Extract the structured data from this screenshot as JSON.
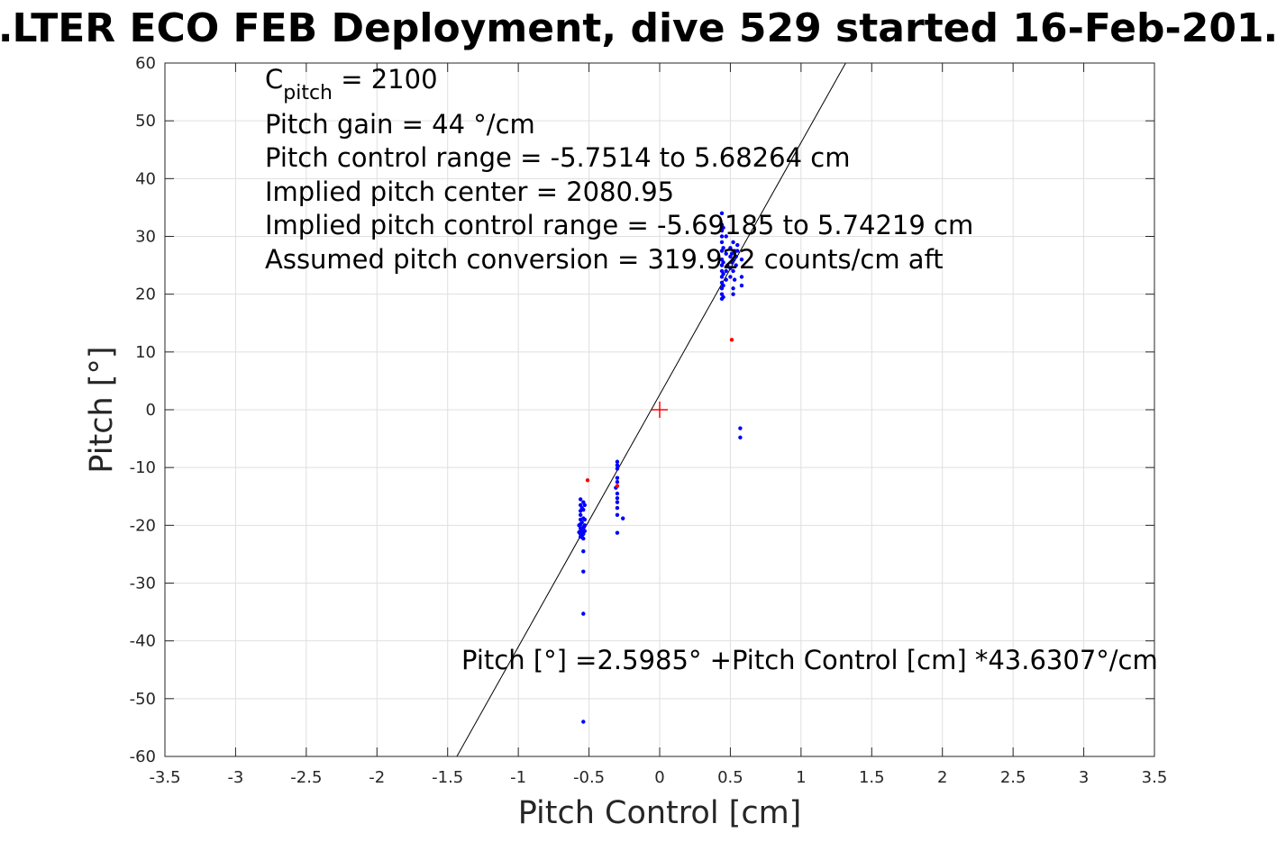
{
  "chart_data": {
    "type": "scatter",
    "title": "…LTER ECO FEB Deployment, dive 529 started 16-Feb-201…",
    "xlabel": "Pitch Control [cm]",
    "ylabel": "Pitch [°]",
    "xlim": [
      -3.5,
      3.5
    ],
    "ylim": [
      -60,
      60
    ],
    "x_ticks": [
      "-3.5",
      "-3",
      "-2.5",
      "-2",
      "-1.5",
      "-1",
      "-0.5",
      "0",
      "0.5",
      "1",
      "1.5",
      "2",
      "2.5",
      "3",
      "3.5"
    ],
    "y_ticks": [
      "60",
      "50",
      "40",
      "30",
      "20",
      "10",
      "0",
      "-10",
      "-20",
      "-30",
      "-40",
      "-50",
      "-60"
    ],
    "grid": true,
    "annotations": {
      "cpitch_main": "C",
      "cpitch_sub": "pitch",
      "cpitch_value": " = 2100",
      "line2": "Pitch gain = 44 °/cm",
      "line3": "Pitch control range = -5.7514 to 5.68264 cm",
      "line4": "Implied pitch center = 2080.95",
      "line5": "Implied pitch control range = -5.69185 to 5.74219 cm",
      "line6": "Assumed pitch conversion = 319.922 counts/cm aft",
      "fit_equation": "Pitch [°] =2.5985° +Pitch Control [cm] *43.6307°/cm"
    },
    "fit_line": {
      "intercept": 2.5985,
      "slope": 43.6307,
      "color": "#000000"
    },
    "center_marker": {
      "x": 0,
      "y": 0,
      "color": "#ff0000",
      "symbol": "+"
    },
    "series": [
      {
        "color": "#0000ff",
        "points": [
          [
            -0.56,
            -15.5
          ],
          [
            -0.56,
            -16.5
          ],
          [
            -0.56,
            -17.5
          ],
          [
            -0.56,
            -18.2
          ],
          [
            -0.56,
            -19.0
          ],
          [
            -0.56,
            -19.8
          ],
          [
            -0.56,
            -20.5
          ],
          [
            -0.56,
            -21.0
          ],
          [
            -0.56,
            -21.5
          ],
          [
            -0.56,
            -22.0
          ],
          [
            -0.57,
            -20.0
          ],
          [
            -0.57,
            -21.2
          ],
          [
            -0.55,
            -17.0
          ],
          [
            -0.55,
            -19.5
          ],
          [
            -0.55,
            -20.8
          ],
          [
            -0.55,
            -21.8
          ],
          [
            -0.54,
            -16.0
          ],
          [
            -0.54,
            -17.3
          ],
          [
            -0.54,
            -18.8
          ],
          [
            -0.54,
            -20.3
          ],
          [
            -0.54,
            -21.5
          ],
          [
            -0.54,
            -22.3
          ],
          [
            -0.53,
            -16.5
          ],
          [
            -0.53,
            -19.0
          ],
          [
            -0.53,
            -20.0
          ],
          [
            -0.53,
            -21.0
          ],
          [
            -0.54,
            -24.5
          ],
          [
            -0.54,
            -28.0
          ],
          [
            -0.54,
            -35.3
          ],
          [
            -0.54,
            -54.0
          ],
          [
            -0.3,
            -9.0
          ],
          [
            -0.3,
            -9.6
          ],
          [
            -0.3,
            -10.2
          ],
          [
            -0.3,
            -11.8
          ],
          [
            -0.3,
            -12.5
          ],
          [
            -0.3,
            -14.5
          ],
          [
            -0.3,
            -15.3
          ],
          [
            -0.3,
            -16.0
          ],
          [
            -0.3,
            -17.0
          ],
          [
            -0.3,
            -18.2
          ],
          [
            -0.31,
            -13.5
          ],
          [
            -0.3,
            -21.3
          ],
          [
            -0.26,
            -18.8
          ],
          [
            0.44,
            34.0
          ],
          [
            0.44,
            32.0
          ],
          [
            0.44,
            31.0
          ],
          [
            0.44,
            30.0
          ],
          [
            0.44,
            29.0
          ],
          [
            0.44,
            27.5
          ],
          [
            0.44,
            26.0
          ],
          [
            0.44,
            25.0
          ],
          [
            0.44,
            24.0
          ],
          [
            0.44,
            23.0
          ],
          [
            0.44,
            22.0
          ],
          [
            0.44,
            21.0
          ],
          [
            0.44,
            20.0
          ],
          [
            0.44,
            19.2
          ],
          [
            0.45,
            31.5
          ],
          [
            0.45,
            28.0
          ],
          [
            0.45,
            25.5
          ],
          [
            0.45,
            23.5
          ],
          [
            0.45,
            21.5
          ],
          [
            0.45,
            19.5
          ],
          [
            0.47,
            30.0
          ],
          [
            0.47,
            27.0
          ],
          [
            0.47,
            24.0
          ],
          [
            0.47,
            22.5
          ],
          [
            0.48,
            25.0
          ],
          [
            0.5,
            28.0
          ],
          [
            0.5,
            26.5
          ],
          [
            0.5,
            24.5
          ],
          [
            0.5,
            23.0
          ],
          [
            0.51,
            27.0
          ],
          [
            0.51,
            25.5
          ],
          [
            0.52,
            29.0
          ],
          [
            0.52,
            26.0
          ],
          [
            0.52,
            24.0
          ],
          [
            0.52,
            21.0
          ],
          [
            0.52,
            20.0
          ],
          [
            0.53,
            27.5
          ],
          [
            0.53,
            22.5
          ],
          [
            0.54,
            26.5
          ],
          [
            0.54,
            25.0
          ],
          [
            0.55,
            28.5
          ],
          [
            0.55,
            27.5
          ],
          [
            0.58,
            26.0
          ],
          [
            0.58,
            23.0
          ],
          [
            0.58,
            21.5
          ],
          [
            0.57,
            -3.2
          ],
          [
            0.57,
            -4.8
          ]
        ]
      },
      {
        "color": "#ff0000",
        "points": [
          [
            -0.51,
            -12.2
          ],
          [
            0.51,
            12.1
          ],
          [
            -0.3,
            -13.2
          ]
        ]
      }
    ]
  }
}
